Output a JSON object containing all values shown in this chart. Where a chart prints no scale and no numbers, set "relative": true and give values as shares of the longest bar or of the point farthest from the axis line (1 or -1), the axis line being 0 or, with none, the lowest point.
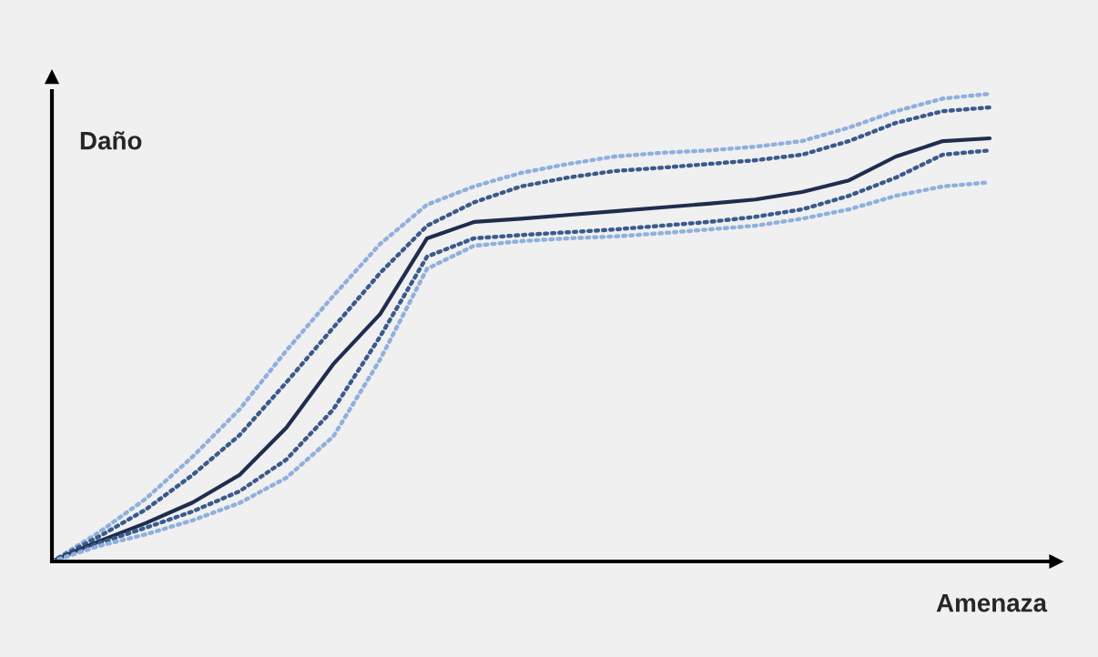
{
  "chart_data": {
    "type": "line",
    "relative": true,
    "xlabel": "Amenaza",
    "ylabel": "Daño",
    "legend": false,
    "marker": "none",
    "categories": [
      null,
      null,
      null,
      null,
      null,
      null,
      null,
      null,
      null,
      null,
      null,
      null,
      null,
      null,
      null,
      null,
      null,
      null,
      null,
      null,
      null
    ],
    "series": [
      {
        "color": "#8fb0dc",
        "line_style": "dotted",
        "values": [
          0,
          0.062,
          0.134,
          0.224,
          0.325,
          0.451,
          0.568,
          0.679,
          0.763,
          0.802,
          0.831,
          0.85,
          0.866,
          0.874,
          0.879,
          0.887,
          0.899,
          0.928,
          0.963,
          0.99,
          1
        ]
      },
      {
        "color": "#3a5a8c",
        "line_style": "dotted",
        "values": [
          0,
          0.053,
          0.111,
          0.185,
          0.27,
          0.383,
          0.5,
          0.617,
          0.718,
          0.768,
          0.802,
          0.821,
          0.835,
          0.842,
          0.85,
          0.858,
          0.87,
          0.899,
          0.938,
          0.963,
          0.971
        ]
      },
      {
        "color": "#1f2d4e",
        "line_style": "solid",
        "values": [
          0,
          0.043,
          0.082,
          0.126,
          0.185,
          0.286,
          0.422,
          0.529,
          0.691,
          0.726,
          0.733,
          0.741,
          0.749,
          0.757,
          0.765,
          0.774,
          0.79,
          0.815,
          0.866,
          0.899,
          0.905
        ]
      },
      {
        "color": "#3a5a8c",
        "line_style": "dotted",
        "values": [
          0,
          0.039,
          0.072,
          0.107,
          0.15,
          0.218,
          0.325,
          0.481,
          0.652,
          0.691,
          0.698,
          0.704,
          0.71,
          0.718,
          0.726,
          0.737,
          0.753,
          0.782,
          0.821,
          0.87,
          0.879
        ]
      },
      {
        "color": "#8fb0dc",
        "line_style": "dotted",
        "values": [
          0,
          0.033,
          0.058,
          0.088,
          0.125,
          0.179,
          0.267,
          0.432,
          0.626,
          0.675,
          0.685,
          0.691,
          0.695,
          0.702,
          0.71,
          0.718,
          0.733,
          0.753,
          0.782,
          0.802,
          0.811
        ]
      }
    ]
  }
}
